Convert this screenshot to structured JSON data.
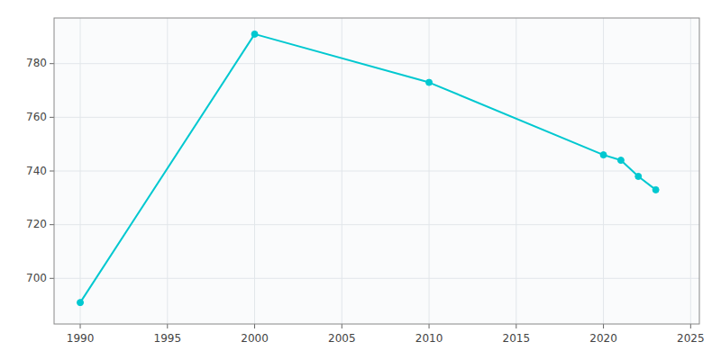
{
  "chart_data": {
    "type": "line",
    "x": [
      1990,
      2000,
      2010,
      2020,
      2021,
      2022,
      2023
    ],
    "values": [
      691,
      791,
      773,
      746,
      744,
      738,
      733
    ],
    "color": "#00c8d0",
    "marker": "circle",
    "xlim": [
      1988.5,
      2025.5
    ],
    "ylim": [
      683,
      797
    ],
    "xticks": [
      1990,
      1995,
      2000,
      2005,
      2010,
      2015,
      2020,
      2025
    ],
    "yticks": [
      700,
      720,
      740,
      760,
      780
    ],
    "grid": true
  }
}
